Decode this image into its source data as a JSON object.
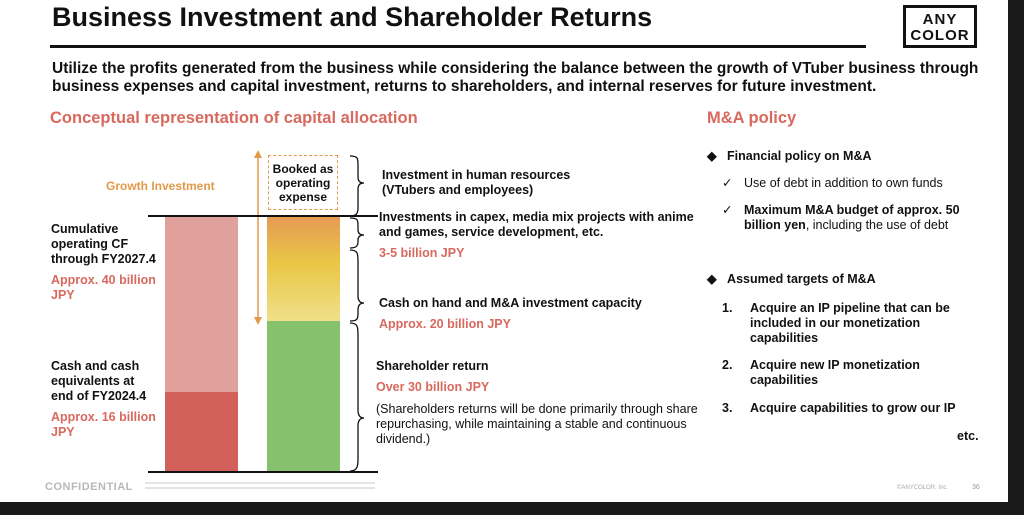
{
  "header": {
    "title": "Business Investment and Shareholder Returns",
    "logo": [
      "ANY",
      "COLOR"
    ]
  },
  "subtitle": "Utilize the profits generated from the business while considering the balance between the growth of VTuber business through business expenses and capital investment, returns to shareholders, and internal reserves for future investment.",
  "left": {
    "heading": "Conceptual representation of capital allocation",
    "growth_label": "Growth Investment",
    "booked_label": [
      "Booked as",
      "operating",
      "expense"
    ],
    "cumulative_cf": {
      "label": [
        "Cumulative",
        "operating CF",
        "through FY2027.4"
      ],
      "amount": [
        "Approx. 40 billion",
        "JPY"
      ]
    },
    "cash_equiv": {
      "label": [
        "Cash and cash",
        "equivalents at",
        "end of FY2024.4"
      ],
      "amount": [
        "Approx. 16 billion",
        "JPY"
      ]
    },
    "human": [
      "Investment in human resources",
      "(VTubers and employees)"
    ],
    "capex": {
      "label": [
        "Investments in capex, media mix projects with anime",
        "and games, service development, etc."
      ],
      "amount": "3-5 billion JPY"
    },
    "cash_ma": {
      "label": "Cash on hand and M&A investment capacity",
      "amount": "Approx. 20 billion JPY"
    },
    "shareholder": {
      "label": "Shareholder return",
      "amount": "Over 30 billion JPY",
      "note": [
        "(Shareholders returns will be done primarily through share",
        "repurchasing, while maintaining a stable and continuous",
        "dividend.)"
      ]
    }
  },
  "right": {
    "heading": "M&A policy",
    "financial": {
      "title": "Financial policy on M&A",
      "item1": "Use of debt in addition to own funds",
      "item2_bold": [
        "Maximum M&A budget of approx. 50",
        "billion yen"
      ],
      "item2_rest": ", including the use of debt"
    },
    "targets": {
      "title": "Assumed targets of M&A",
      "items": [
        {
          "num": "1.",
          "lines": [
            "Acquire an IP pipeline that can be",
            "included in our monetization",
            "capabilities"
          ]
        },
        {
          "num": "2.",
          "lines": [
            "Acquire new IP monetization",
            "capabilities"
          ]
        },
        {
          "num": "3.",
          "lines": [
            "Acquire capabilities to grow our IP"
          ]
        }
      ],
      "etc": "etc."
    }
  },
  "footer": {
    "confidential": "CONFIDENTIAL",
    "copyright": "©ANYCOLOR, Inc.",
    "page": "36"
  }
}
